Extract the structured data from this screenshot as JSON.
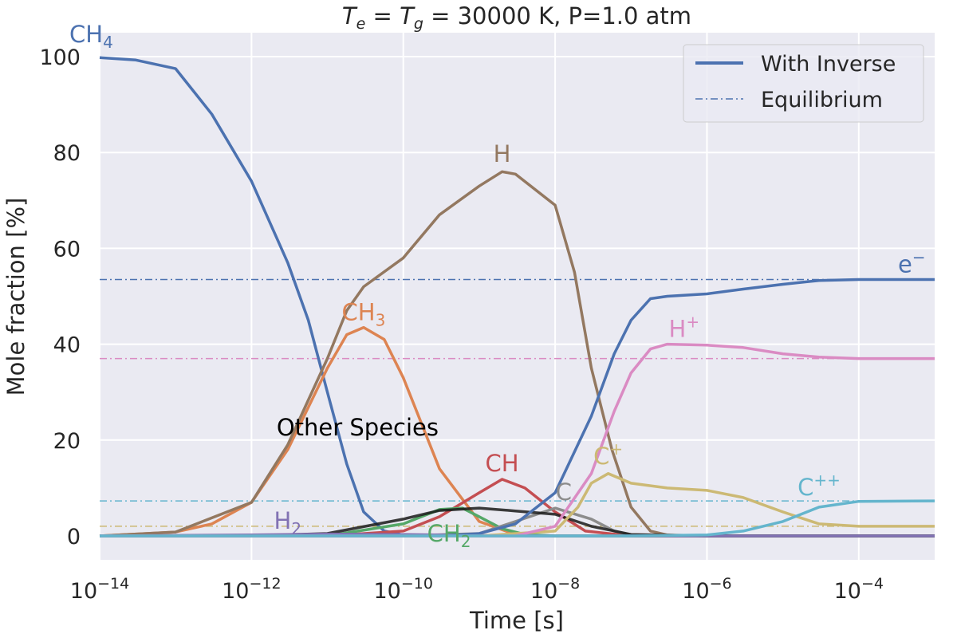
{
  "chart_data": {
    "type": "line",
    "title": {
      "te": "T",
      "te_sub": "e",
      "eq1": " = ",
      "tg": "T",
      "tg_sub": "g",
      "rest": " = 30000 K, P=1.0 atm"
    },
    "xlabel": "Time [s]",
    "ylabel": "Mole fraction [%]",
    "xscale": "log",
    "xlim": [
      1e-14,
      0.001
    ],
    "ylim": [
      -5,
      105
    ],
    "xticks": [
      {
        "base": "10",
        "exp": "−14"
      },
      {
        "base": "10",
        "exp": "−12"
      },
      {
        "base": "10",
        "exp": "−10"
      },
      {
        "base": "10",
        "exp": "−8"
      },
      {
        "base": "10",
        "exp": "−6"
      },
      {
        "base": "10",
        "exp": "−4"
      }
    ],
    "xtick_values": [
      1e-14,
      1e-12,
      1e-10,
      1e-08,
      1e-06,
      0.0001
    ],
    "yticks": [
      "0",
      "20",
      "40",
      "60",
      "80",
      "100"
    ],
    "ytick_values": [
      0,
      20,
      40,
      60,
      80,
      100
    ],
    "grid": true,
    "legend": {
      "placement": "top-right",
      "entries": [
        "With Inverse",
        "Equilibrium"
      ]
    },
    "series": [
      {
        "name": "CH",
        "sub": "4",
        "sup": "",
        "color": "#4c72b0",
        "points": [
          [
            1e-14,
            99.8
          ],
          [
            3e-14,
            99.3
          ],
          [
            1e-13,
            97.5
          ],
          [
            3e-13,
            88
          ],
          [
            1e-12,
            74
          ],
          [
            3e-12,
            57
          ],
          [
            5.6e-12,
            45
          ],
          [
            1e-11,
            30
          ],
          [
            1.8e-11,
            15
          ],
          [
            3e-11,
            5
          ],
          [
            5.6e-11,
            1
          ],
          [
            1e-10,
            0.2
          ],
          [
            1e-09,
            0
          ],
          [
            0.001,
            0
          ]
        ]
      },
      {
        "name": "CH",
        "sub": "3",
        "sup": "",
        "color": "#dd8452",
        "points": [
          [
            1e-14,
            0
          ],
          [
            1e-13,
            0.8
          ],
          [
            3e-13,
            2.5
          ],
          [
            1e-12,
            7
          ],
          [
            3e-12,
            18
          ],
          [
            1e-11,
            35
          ],
          [
            1.8e-11,
            42
          ],
          [
            3e-11,
            43.5
          ],
          [
            5.6e-11,
            41
          ],
          [
            1e-10,
            33
          ],
          [
            3e-10,
            14
          ],
          [
            1e-09,
            3
          ],
          [
            3e-09,
            0.3
          ],
          [
            1e-08,
            0
          ],
          [
            0.001,
            0
          ]
        ]
      },
      {
        "name": "H",
        "sub": "",
        "sup": "",
        "color": "#937860",
        "points": [
          [
            1e-14,
            0
          ],
          [
            1e-13,
            0.8
          ],
          [
            1e-12,
            7
          ],
          [
            3e-12,
            19
          ],
          [
            1e-11,
            37
          ],
          [
            1.8e-11,
            47
          ],
          [
            3e-11,
            52
          ],
          [
            1e-10,
            58
          ],
          [
            3e-10,
            67
          ],
          [
            1e-09,
            73
          ],
          [
            2e-09,
            76
          ],
          [
            3e-09,
            75.5
          ],
          [
            1e-08,
            69
          ],
          [
            1.8e-08,
            55
          ],
          [
            3e-08,
            35
          ],
          [
            5.6e-08,
            18
          ],
          [
            1e-07,
            6
          ],
          [
            1.8e-07,
            1
          ],
          [
            3e-07,
            0.2
          ],
          [
            1e-06,
            0
          ],
          [
            0.001,
            0
          ]
        ]
      },
      {
        "name": "CH",
        "sub": "",
        "sup": "",
        "color": "#c44e52",
        "points": [
          [
            1e-14,
            0
          ],
          [
            1e-11,
            0
          ],
          [
            1e-10,
            1
          ],
          [
            3e-10,
            4
          ],
          [
            1e-09,
            9
          ],
          [
            2e-09,
            11.8
          ],
          [
            4e-09,
            10
          ],
          [
            1e-08,
            5
          ],
          [
            2.5e-08,
            1
          ],
          [
            1e-07,
            0
          ],
          [
            0.001,
            0
          ]
        ]
      },
      {
        "name": "CH",
        "sub": "2",
        "sup": "",
        "color": "#55a868",
        "points": [
          [
            1e-14,
            0
          ],
          [
            1e-11,
            0
          ],
          [
            1e-10,
            2.5
          ],
          [
            3e-10,
            5.5
          ],
          [
            6e-10,
            5.8
          ],
          [
            1e-09,
            4
          ],
          [
            2e-09,
            1.5
          ],
          [
            4e-09,
            0.3
          ],
          [
            1e-08,
            0
          ],
          [
            0.001,
            0
          ]
        ]
      },
      {
        "name": "C",
        "sub": "",
        "sup": "",
        "color": "#8c8c8c",
        "points": [
          [
            1e-14,
            0
          ],
          [
            1e-10,
            0
          ],
          [
            1e-09,
            0.5
          ],
          [
            3e-09,
            3
          ],
          [
            1e-08,
            5.8
          ],
          [
            3e-08,
            3.5
          ],
          [
            6e-08,
            1
          ],
          [
            1e-07,
            0.2
          ],
          [
            3e-07,
            0
          ],
          [
            0.001,
            0
          ]
        ]
      },
      {
        "name": "Other Species",
        "sub": "",
        "sup": "",
        "color": "#1a1a1a",
        "points": [
          [
            1e-14,
            0
          ],
          [
            1e-12,
            0
          ],
          [
            1e-11,
            0.5
          ],
          [
            1e-10,
            3.5
          ],
          [
            3e-10,
            5.3
          ],
          [
            1e-09,
            5.8
          ],
          [
            3e-09,
            5.2
          ],
          [
            1e-08,
            4.5
          ],
          [
            3e-08,
            2
          ],
          [
            1e-07,
            0.3
          ],
          [
            1e-06,
            0
          ],
          [
            0.001,
            0
          ]
        ]
      },
      {
        "name": "H",
        "sub": "2",
        "sup": "",
        "color": "#8172b3",
        "points": [
          [
            1e-14,
            0
          ],
          [
            1e-12,
            0.2
          ],
          [
            1e-11,
            0.4
          ],
          [
            1e-10,
            0.3
          ],
          [
            1e-09,
            0.1
          ],
          [
            1e-08,
            0
          ],
          [
            0.001,
            0
          ]
        ]
      },
      {
        "name": "C",
        "sub": "",
        "sup": "+",
        "color": "#ccb974",
        "equilibrium": 2,
        "points": [
          [
            1e-14,
            0
          ],
          [
            1e-09,
            0
          ],
          [
            1e-08,
            1
          ],
          [
            2e-08,
            6
          ],
          [
            3e-08,
            11
          ],
          [
            5e-08,
            13
          ],
          [
            1e-07,
            11
          ],
          [
            3e-07,
            10
          ],
          [
            1e-06,
            9.5
          ],
          [
            3e-06,
            8
          ],
          [
            1e-05,
            5
          ],
          [
            3e-05,
            2.5
          ],
          [
            0.0001,
            2
          ],
          [
            0.001,
            2
          ]
        ]
      },
      {
        "name": "e",
        "sub": "",
        "sup": "−",
        "color": "#4c72b0",
        "equilibrium": 53.5,
        "points": [
          [
            1e-14,
            0
          ],
          [
            3e-10,
            0
          ],
          [
            1e-09,
            0.5
          ],
          [
            3e-09,
            2.5
          ],
          [
            1e-08,
            9
          ],
          [
            3e-08,
            25
          ],
          [
            6e-08,
            38
          ],
          [
            1e-07,
            45
          ],
          [
            1.8e-07,
            49.5
          ],
          [
            3e-07,
            50
          ],
          [
            1e-06,
            50.5
          ],
          [
            3e-06,
            51.5
          ],
          [
            1e-05,
            52.5
          ],
          [
            3e-05,
            53.3
          ],
          [
            0.0001,
            53.5
          ],
          [
            0.001,
            53.5
          ]
        ]
      },
      {
        "name": "H",
        "sub": "",
        "sup": "+",
        "color": "#da8bc3",
        "equilibrium": 37,
        "points": [
          [
            1e-14,
            0
          ],
          [
            3e-09,
            0
          ],
          [
            1e-08,
            2
          ],
          [
            3e-08,
            13
          ],
          [
            6e-08,
            26
          ],
          [
            1e-07,
            34
          ],
          [
            1.8e-07,
            39
          ],
          [
            3e-07,
            40
          ],
          [
            1e-06,
            39.8
          ],
          [
            3e-06,
            39.3
          ],
          [
            1e-05,
            38
          ],
          [
            3e-05,
            37.3
          ],
          [
            0.0001,
            37
          ],
          [
            0.001,
            37
          ]
        ]
      },
      {
        "name": "C",
        "sub": "",
        "sup": "++",
        "color": "#64b5cd",
        "equilibrium": 7.3,
        "points": [
          [
            1e-14,
            0
          ],
          [
            1e-07,
            0
          ],
          [
            1e-06,
            0.2
          ],
          [
            3e-06,
            1
          ],
          [
            1e-05,
            3
          ],
          [
            3e-05,
            6
          ],
          [
            0.0001,
            7.2
          ],
          [
            0.001,
            7.3
          ]
        ]
      }
    ]
  }
}
